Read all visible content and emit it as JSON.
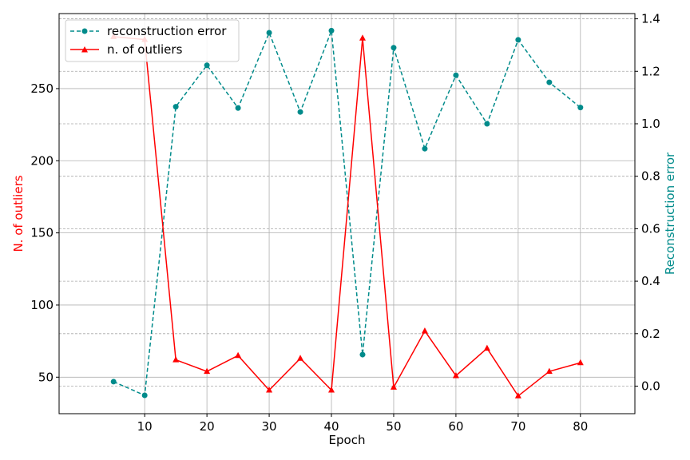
{
  "chart_data": {
    "type": "line",
    "xlabel": "Epoch",
    "ylabel_left": "N. of outliers",
    "ylabel_right": "Reconstruction error",
    "x": [
      5,
      10,
      15,
      20,
      25,
      30,
      35,
      40,
      45,
      50,
      55,
      60,
      65,
      70,
      75,
      80
    ],
    "xlim": [
      -3.75,
      88.75
    ],
    "ylim_left": [
      24.7,
      302
    ],
    "ylim_right": [
      -0.105,
      1.42
    ],
    "xticks": [
      10,
      20,
      30,
      40,
      50,
      60,
      70,
      80
    ],
    "yticks_left": [
      50,
      100,
      150,
      200,
      250
    ],
    "yticks_right": [
      0.0,
      0.2,
      0.4,
      0.6,
      0.8,
      1.0,
      1.2,
      1.4
    ],
    "ytick_labels_right": [
      "0.0",
      "0.2",
      "0.4",
      "0.6",
      "0.8",
      "1.0",
      "1.2",
      "1.4"
    ],
    "grid": true,
    "legend_position": "top-left",
    "series": [
      {
        "name": "reconstruction error",
        "axis": "right",
        "color": "#008b8b",
        "linestyle": "dashed",
        "marker": "circle",
        "values": [
          0.017,
          -0.035,
          1.065,
          1.223,
          1.06,
          1.347,
          1.045,
          1.355,
          0.12,
          1.29,
          0.905,
          1.185,
          1.0,
          1.32,
          1.158,
          1.062
        ]
      },
      {
        "name": "n. of outliers",
        "axis": "left",
        "color": "#ff0000",
        "linestyle": "solid",
        "marker": "triangle",
        "values": [
          286,
          284,
          62,
          54,
          65,
          41,
          63,
          41,
          285,
          43,
          82,
          51,
          70,
          37,
          54,
          60
        ]
      }
    ]
  }
}
